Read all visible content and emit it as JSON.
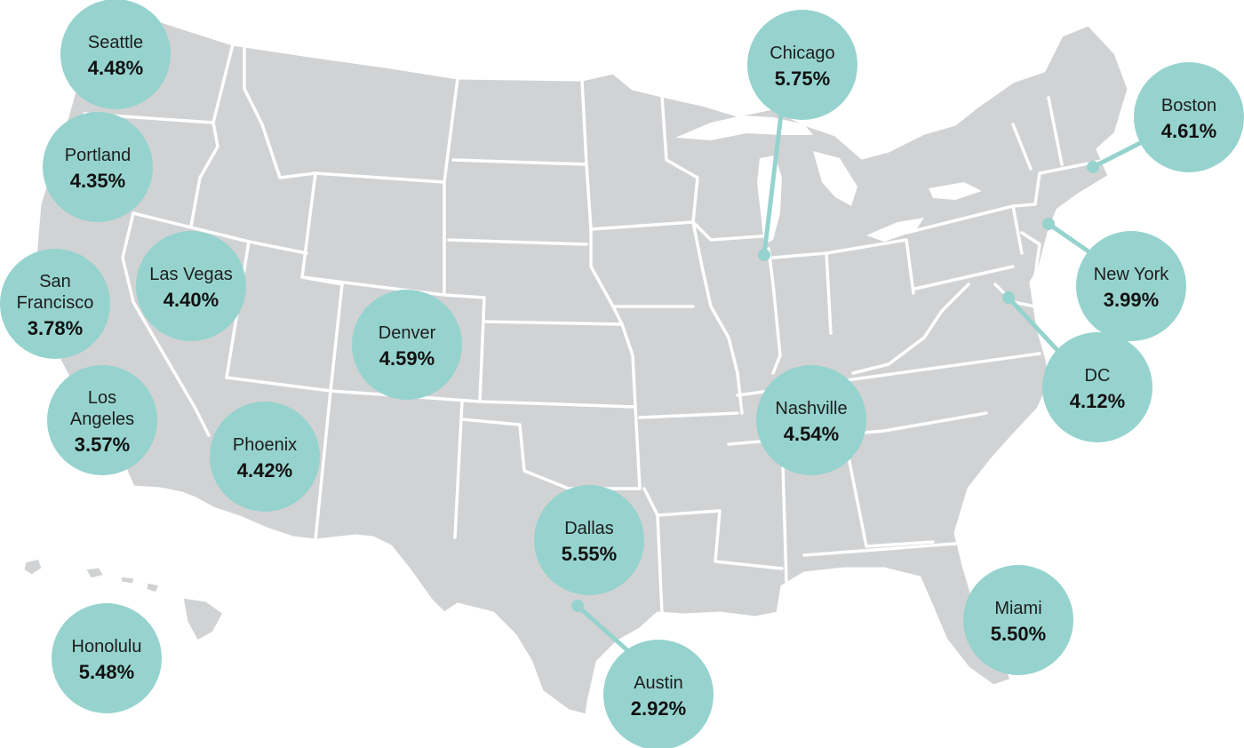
{
  "map": {
    "colors": {
      "land": "#d1d2d4",
      "border": "#ffffff",
      "bubble": "#96d3ce",
      "text": "#111111"
    },
    "cities": [
      {
        "id": "seattle",
        "name_lines": [
          "Seattle"
        ],
        "value": "4.48%"
      },
      {
        "id": "portland",
        "name_lines": [
          "Portland"
        ],
        "value": "4.35%"
      },
      {
        "id": "san-francisco",
        "name_lines": [
          "San",
          "Francisco"
        ],
        "value": "3.78%"
      },
      {
        "id": "las-vegas",
        "name_lines": [
          "Las Vegas"
        ],
        "value": "4.40%"
      },
      {
        "id": "los-angeles",
        "name_lines": [
          "Los",
          "Angeles"
        ],
        "value": "3.57%"
      },
      {
        "id": "phoenix",
        "name_lines": [
          "Phoenix"
        ],
        "value": "4.42%"
      },
      {
        "id": "denver",
        "name_lines": [
          "Denver"
        ],
        "value": "4.59%"
      },
      {
        "id": "honolulu",
        "name_lines": [
          "Honolulu"
        ],
        "value": "5.48%"
      },
      {
        "id": "dallas",
        "name_lines": [
          "Dallas"
        ],
        "value": "5.55%"
      },
      {
        "id": "austin",
        "name_lines": [
          "Austin"
        ],
        "value": "2.92%"
      },
      {
        "id": "chicago",
        "name_lines": [
          "Chicago"
        ],
        "value": "5.75%"
      },
      {
        "id": "nashville",
        "name_lines": [
          "Nashville"
        ],
        "value": "4.54%"
      },
      {
        "id": "boston",
        "name_lines": [
          "Boston"
        ],
        "value": "4.61%"
      },
      {
        "id": "new-york",
        "name_lines": [
          "New York"
        ],
        "value": "3.99%"
      },
      {
        "id": "dc",
        "name_lines": [
          "DC"
        ],
        "value": "4.12%"
      },
      {
        "id": "miami",
        "name_lines": [
          "Miami"
        ],
        "value": "5.50%"
      }
    ]
  }
}
